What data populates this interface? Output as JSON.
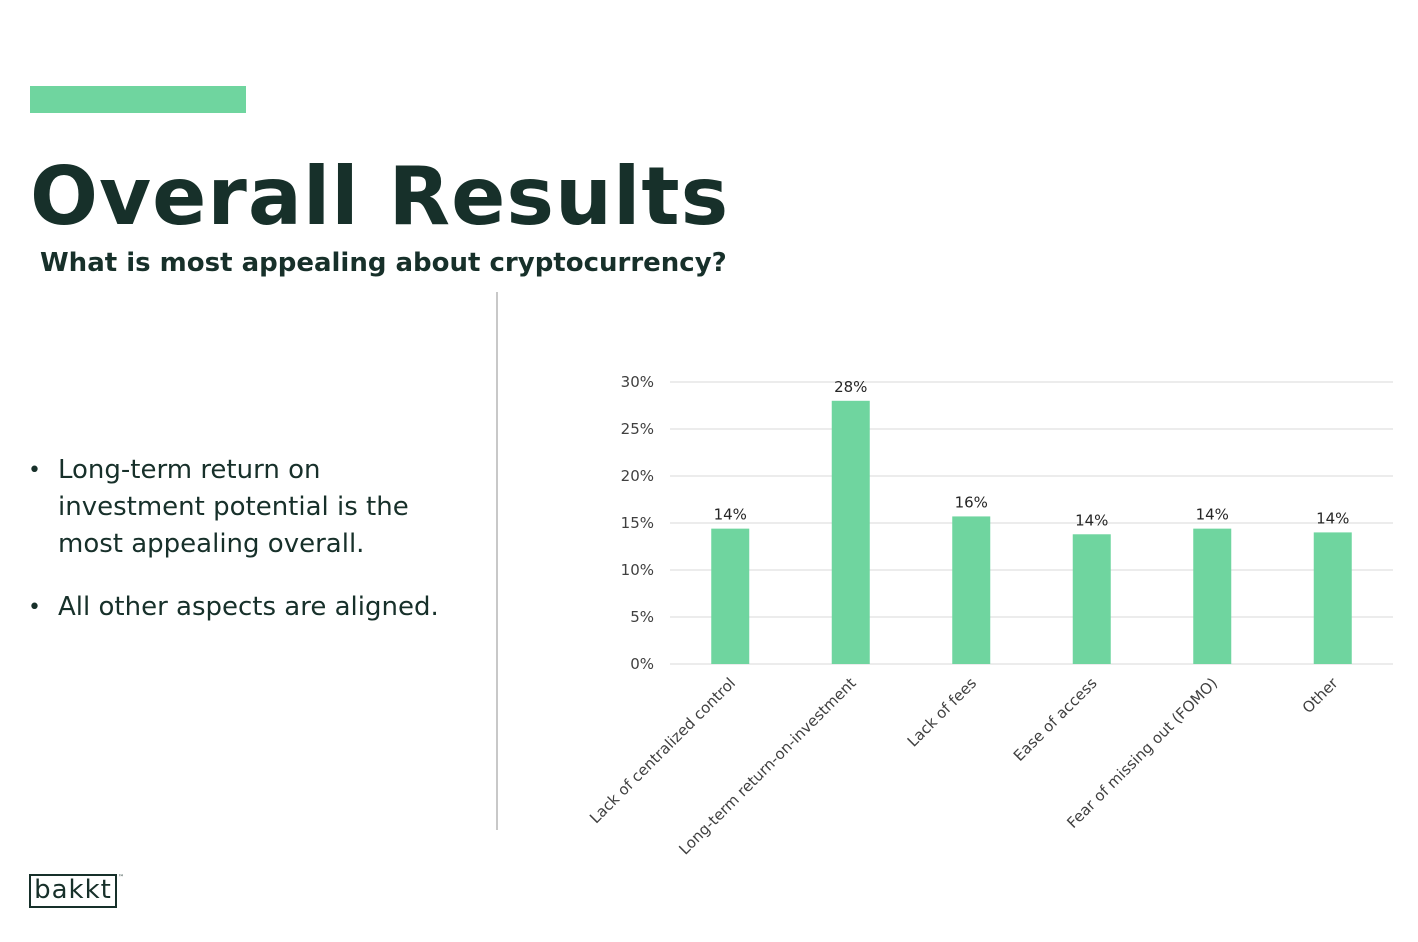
{
  "header": {
    "title": "Overall Results",
    "subtitle": "What is most appealing about cryptocurrency?"
  },
  "bullets": [
    "Long-term return on investment potential is the most appealing overall.",
    "All other aspects are aligned."
  ],
  "logo": {
    "text": "bakkt",
    "tm": "™"
  },
  "colors": {
    "accent": "#6fd59f",
    "bar": "#6fd59f",
    "text": "#17302a",
    "grid": "#d9d9d9"
  },
  "chart_data": {
    "type": "bar",
    "title": "",
    "xlabel": "",
    "ylabel": "",
    "categories": [
      "Lack of centralized control",
      "Long-term return-on-investment",
      "Lack of fees",
      "Ease of access",
      "Fear of missing out (FOMO)",
      "Other"
    ],
    "values": [
      14.4,
      28,
      15.7,
      13.8,
      14.4,
      14
    ],
    "data_labels": [
      "14%",
      "28%",
      "16%",
      "14%",
      "14%",
      "14%"
    ],
    "ylim": [
      0,
      30
    ],
    "yticks": [
      0,
      5,
      10,
      15,
      20,
      25,
      30
    ],
    "ytick_labels": [
      "0%",
      "5%",
      "10%",
      "15%",
      "20%",
      "25%",
      "30%"
    ],
    "grid": true,
    "legend": "none"
  }
}
